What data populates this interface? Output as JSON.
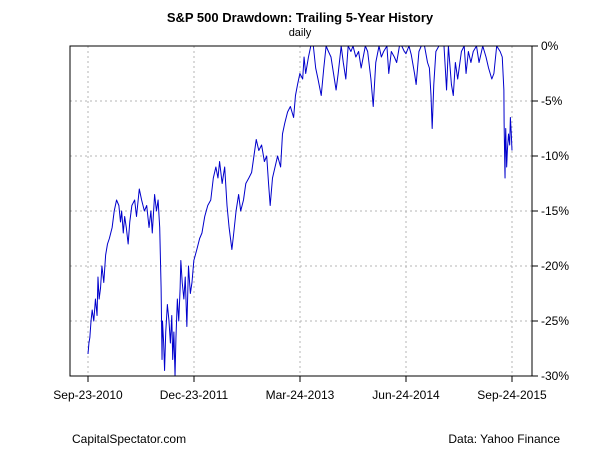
{
  "chart_data": {
    "type": "line",
    "title": "S&P 500 Drawdown: Trailing 5-Year History",
    "subtitle": "daily",
    "xlabel": "",
    "ylabel": "",
    "x_tick_labels": [
      "Sep-23-2010",
      "Dec-23-2011",
      "Mar-24-2013",
      "Jun-24-2014",
      "Sep-24-2015"
    ],
    "x_range": [
      "2010-09-23",
      "2015-09-24"
    ],
    "y_tick_labels": [
      "0%",
      "-5%",
      "-10%",
      "-15%",
      "-20%",
      "-25%",
      "-30%"
    ],
    "y_axis_side": "right",
    "ylim": [
      -30,
      0
    ],
    "grid": true,
    "series": [
      {
        "color": "#0000cc",
        "points": [
          [
            "2010-09-23",
            -28.0
          ],
          [
            "2010-09-27",
            -27.0
          ],
          [
            "2010-10-01",
            -26.5
          ],
          [
            "2010-10-06",
            -25.0
          ],
          [
            "2010-10-11",
            -24.0
          ],
          [
            "2010-10-18",
            -25.0
          ],
          [
            "2010-10-25",
            -23.0
          ],
          [
            "2010-11-01",
            -24.5
          ],
          [
            "2010-11-05",
            -21.0
          ],
          [
            "2010-11-10",
            -23.0
          ],
          [
            "2010-11-16",
            -22.0
          ],
          [
            "2010-11-22",
            -20.0
          ],
          [
            "2010-11-30",
            -21.5
          ],
          [
            "2010-12-08",
            -19.0
          ],
          [
            "2010-12-16",
            -18.0
          ],
          [
            "2010-12-24",
            -17.5
          ],
          [
            "2011-01-05",
            -16.5
          ],
          [
            "2011-01-14",
            -15.0
          ],
          [
            "2011-01-24",
            -14.0
          ],
          [
            "2011-02-03",
            -14.5
          ],
          [
            "2011-02-10",
            -16.0
          ],
          [
            "2011-02-15",
            -15.0
          ],
          [
            "2011-02-22",
            -17.0
          ],
          [
            "2011-02-28",
            -15.5
          ],
          [
            "2011-03-07",
            -16.5
          ],
          [
            "2011-03-15",
            -18.0
          ],
          [
            "2011-03-22",
            -16.0
          ],
          [
            "2011-03-31",
            -14.5
          ],
          [
            "2011-04-12",
            -14.0
          ],
          [
            "2011-04-20",
            -15.5
          ],
          [
            "2011-05-02",
            -13.0
          ],
          [
            "2011-05-12",
            -14.0
          ],
          [
            "2011-05-24",
            -15.0
          ],
          [
            "2011-06-03",
            -14.5
          ],
          [
            "2011-06-13",
            -16.5
          ],
          [
            "2011-06-21",
            -15.0
          ],
          [
            "2011-06-27",
            -17.0
          ],
          [
            "2011-07-07",
            -13.5
          ],
          [
            "2011-07-15",
            -15.0
          ],
          [
            "2011-07-22",
            -14.0
          ],
          [
            "2011-07-29",
            -16.5
          ],
          [
            "2011-08-04",
            -22.0
          ],
          [
            "2011-08-08",
            -28.5
          ],
          [
            "2011-08-10",
            -25.0
          ],
          [
            "2011-08-15",
            -27.0
          ],
          [
            "2011-08-19",
            -29.5
          ],
          [
            "2011-08-24",
            -26.0
          ],
          [
            "2011-08-31",
            -23.5
          ],
          [
            "2011-09-07",
            -25.0
          ],
          [
            "2011-09-13",
            -27.0
          ],
          [
            "2011-09-19",
            -24.5
          ],
          [
            "2011-09-23",
            -28.5
          ],
          [
            "2011-09-28",
            -26.0
          ],
          [
            "2011-10-03",
            -30.0
          ],
          [
            "2011-10-07",
            -26.5
          ],
          [
            "2011-10-13",
            -23.0
          ],
          [
            "2011-10-19",
            -25.0
          ],
          [
            "2011-10-25",
            -22.0
          ],
          [
            "2011-10-28",
            -19.5
          ],
          [
            "2011-11-03",
            -21.5
          ],
          [
            "2011-11-10",
            -23.0
          ],
          [
            "2011-11-16",
            -21.0
          ],
          [
            "2011-11-23",
            -25.5
          ],
          [
            "2011-11-30",
            -20.0
          ],
          [
            "2011-12-08",
            -22.5
          ],
          [
            "2011-12-15",
            -21.5
          ],
          [
            "2011-12-23",
            -19.5
          ],
          [
            "2012-01-05",
            -18.5
          ],
          [
            "2012-01-17",
            -17.5
          ],
          [
            "2012-01-27",
            -17.0
          ],
          [
            "2012-02-08",
            -15.5
          ],
          [
            "2012-02-21",
            -14.5
          ],
          [
            "2012-03-05",
            -14.0
          ],
          [
            "2012-03-16",
            -12.0
          ],
          [
            "2012-03-27",
            -11.0
          ],
          [
            "2012-04-05",
            -12.0
          ],
          [
            "2012-04-12",
            -10.5
          ],
          [
            "2012-04-23",
            -12.5
          ],
          [
            "2012-05-04",
            -11.0
          ],
          [
            "2012-05-14",
            -14.5
          ],
          [
            "2012-05-23",
            -16.5
          ],
          [
            "2012-06-04",
            -18.5
          ],
          [
            "2012-06-12",
            -17.0
          ],
          [
            "2012-06-22",
            -15.0
          ],
          [
            "2012-07-03",
            -13.5
          ],
          [
            "2012-07-12",
            -15.0
          ],
          [
            "2012-07-24",
            -14.0
          ],
          [
            "2012-08-03",
            -12.5
          ],
          [
            "2012-08-16",
            -12.0
          ],
          [
            "2012-08-28",
            -11.5
          ],
          [
            "2012-09-07",
            -10.0
          ],
          [
            "2012-09-17",
            -8.5
          ],
          [
            "2012-09-28",
            -9.5
          ],
          [
            "2012-10-10",
            -9.0
          ],
          [
            "2012-10-22",
            -10.5
          ],
          [
            "2012-11-01",
            -10.0
          ],
          [
            "2012-11-09",
            -12.5
          ],
          [
            "2012-11-16",
            -14.5
          ],
          [
            "2012-11-26",
            -12.0
          ],
          [
            "2012-12-07",
            -11.0
          ],
          [
            "2012-12-18",
            -10.0
          ],
          [
            "2012-12-31",
            -11.0
          ],
          [
            "2013-01-08",
            -8.0
          ],
          [
            "2013-01-18",
            -7.0
          ],
          [
            "2013-01-30",
            -6.0
          ],
          [
            "2013-02-11",
            -5.5
          ],
          [
            "2013-02-25",
            -6.5
          ],
          [
            "2013-03-05",
            -4.5
          ],
          [
            "2013-03-14",
            -3.5
          ],
          [
            "2013-03-24",
            -2.5
          ],
          [
            "2013-04-05",
            -3.0
          ],
          [
            "2013-04-11",
            -1.0
          ],
          [
            "2013-04-18",
            -2.5
          ],
          [
            "2013-04-30",
            -1.0
          ],
          [
            "2013-05-10",
            0.0
          ],
          [
            "2013-05-21",
            0.0
          ],
          [
            "2013-05-31",
            -2.0
          ],
          [
            "2013-06-10",
            -3.0
          ],
          [
            "2013-06-24",
            -4.5
          ],
          [
            "2013-07-05",
            -2.0
          ],
          [
            "2013-07-15",
            0.0
          ],
          [
            "2013-07-25",
            -0.5
          ],
          [
            "2013-08-05",
            -1.0
          ],
          [
            "2013-08-16",
            -2.5
          ],
          [
            "2013-08-27",
            -4.0
          ],
          [
            "2013-09-05",
            -2.5
          ],
          [
            "2013-09-18",
            0.0
          ],
          [
            "2013-09-27",
            -1.5
          ],
          [
            "2013-10-08",
            -3.0
          ],
          [
            "2013-10-18",
            0.0
          ],
          [
            "2013-10-30",
            -0.5
          ],
          [
            "2013-11-08",
            0.0
          ],
          [
            "2013-11-20",
            -1.0
          ],
          [
            "2013-12-02",
            -0.5
          ],
          [
            "2013-12-13",
            -2.0
          ],
          [
            "2013-12-31",
            0.0
          ],
          [
            "2014-01-10",
            -0.5
          ],
          [
            "2014-01-24",
            -3.0
          ],
          [
            "2014-02-03",
            -5.5
          ],
          [
            "2014-02-14",
            -1.5
          ],
          [
            "2014-02-28",
            0.0
          ],
          [
            "2014-03-10",
            -1.0
          ],
          [
            "2014-03-20",
            -0.5
          ],
          [
            "2014-04-03",
            0.0
          ],
          [
            "2014-04-11",
            -2.5
          ],
          [
            "2014-04-22",
            -0.5
          ],
          [
            "2014-05-05",
            -1.0
          ],
          [
            "2014-05-15",
            -1.5
          ],
          [
            "2014-05-27",
            0.0
          ],
          [
            "2014-06-06",
            0.0
          ],
          [
            "2014-06-17",
            -0.5
          ],
          [
            "2014-06-24",
            -0.7
          ],
          [
            "2014-07-07",
            0.0
          ],
          [
            "2014-07-17",
            -0.8
          ],
          [
            "2014-07-31",
            -2.5
          ],
          [
            "2014-08-07",
            -3.5
          ],
          [
            "2014-08-19",
            -0.5
          ],
          [
            "2014-08-29",
            0.0
          ],
          [
            "2014-09-12",
            0.0
          ],
          [
            "2014-09-25",
            -1.5
          ],
          [
            "2014-10-03",
            -2.0
          ],
          [
            "2014-10-10",
            -4.5
          ],
          [
            "2014-10-15",
            -7.5
          ],
          [
            "2014-10-22",
            -3.5
          ],
          [
            "2014-10-31",
            -0.5
          ],
          [
            "2014-11-13",
            0.0
          ],
          [
            "2014-11-28",
            0.0
          ],
          [
            "2014-12-05",
            0.0
          ],
          [
            "2014-12-16",
            -4.0
          ],
          [
            "2014-12-24",
            0.0
          ],
          [
            "2015-01-06",
            -3.5
          ],
          [
            "2015-01-14",
            -4.5
          ],
          [
            "2015-01-23",
            -1.5
          ],
          [
            "2015-02-02",
            -3.0
          ],
          [
            "2015-02-18",
            -0.5
          ],
          [
            "2015-03-02",
            0.0
          ],
          [
            "2015-03-10",
            -2.5
          ],
          [
            "2015-03-20",
            -0.5
          ],
          [
            "2015-03-31",
            -1.5
          ],
          [
            "2015-04-10",
            -0.5
          ],
          [
            "2015-04-24",
            0.0
          ],
          [
            "2015-05-05",
            -1.5
          ],
          [
            "2015-05-21",
            0.0
          ],
          [
            "2015-06-04",
            -1.0
          ],
          [
            "2015-06-15",
            -2.0
          ],
          [
            "2015-06-29",
            -3.0
          ],
          [
            "2015-07-08",
            -2.5
          ],
          [
            "2015-07-20",
            0.0
          ],
          [
            "2015-08-04",
            -0.5
          ],
          [
            "2015-08-13",
            -1.0
          ],
          [
            "2015-08-20",
            -4.0
          ],
          [
            "2015-08-21",
            -7.0
          ],
          [
            "2015-08-24",
            -11.0
          ],
          [
            "2015-08-25",
            -12.0
          ],
          [
            "2015-08-26",
            -9.0
          ],
          [
            "2015-08-28",
            -7.5
          ],
          [
            "2015-09-01",
            -11.0
          ],
          [
            "2015-09-04",
            -9.5
          ],
          [
            "2015-09-09",
            -8.0
          ],
          [
            "2015-09-14",
            -9.0
          ],
          [
            "2015-09-17",
            -6.5
          ],
          [
            "2015-09-21",
            -8.0
          ],
          [
            "2015-09-24",
            -9.5
          ]
        ]
      }
    ]
  },
  "footer": {
    "left": "CapitalSpectator.com",
    "right": "Data: Yahoo Finance"
  }
}
